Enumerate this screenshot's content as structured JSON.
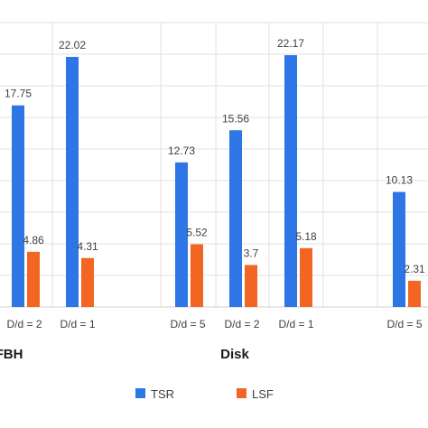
{
  "chart_data": {
    "type": "bar",
    "title": "",
    "xlabel": "",
    "ylabel": "",
    "ylim": [
      0,
      25
    ],
    "grid": true,
    "legend_position": "bottom",
    "groups": [
      "FBH",
      "Disk"
    ],
    "categories": [
      "D/d = 2",
      "D/d = 1",
      "D/d = 5",
      "D/d = 2",
      "D/d = 1",
      "D/d = 5"
    ],
    "category_groups": [
      0,
      0,
      1,
      1,
      1,
      1
    ],
    "series": [
      {
        "name": "TSR",
        "color": "#2E75E6",
        "values": [
          17.75,
          22.02,
          12.73,
          15.56,
          22.17,
          10.13
        ],
        "labels": [
          "17.75",
          "22.02",
          "12.73",
          "15.56",
          "22.17",
          "10.13"
        ]
      },
      {
        "name": "LSF",
        "color": "#F26522",
        "values": [
          4.86,
          4.31,
          5.52,
          3.7,
          5.18,
          2.31
        ],
        "labels": [
          "4.86",
          "4.31",
          "5.52",
          "3.7",
          "5.18",
          "2.31"
        ]
      }
    ]
  }
}
